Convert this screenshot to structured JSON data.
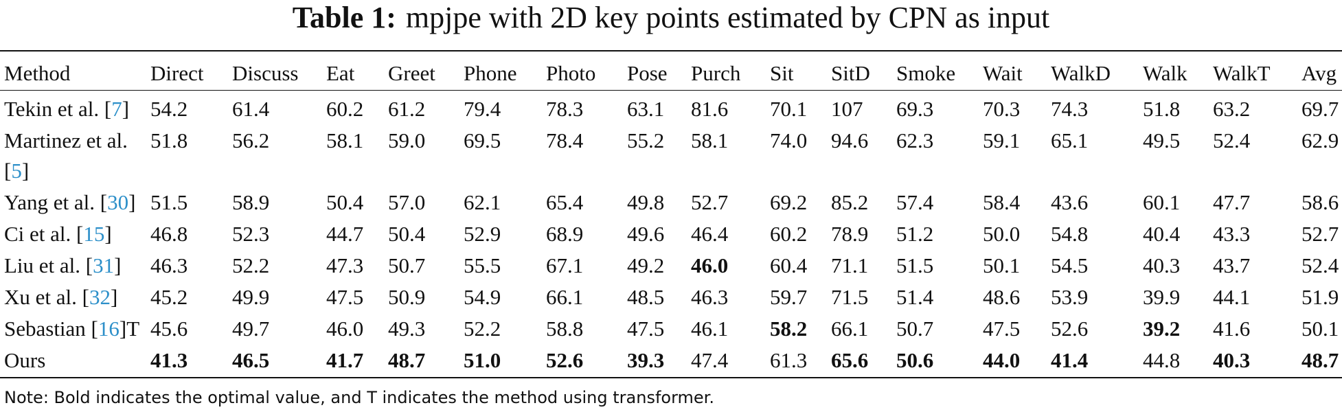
{
  "title": {
    "label": "Table 1:",
    "text": "mpjpe with 2D key points estimated by CPN as input"
  },
  "table": {
    "header": [
      "Method",
      "Direct",
      "Discuss",
      "Eat",
      "Greet",
      "Phone",
      "Photo",
      "Pose",
      "Purch",
      "Sit",
      "SitD",
      "Smoke",
      "Wait",
      "WalkD",
      "Walk",
      "WalkT",
      "Avg"
    ],
    "rows": [
      {
        "method": "Tekin et al. [7]",
        "values": [
          "54.2",
          "61.4",
          "60.2",
          "61.2",
          "79.4",
          "78.3",
          "63.1",
          "81.6",
          "70.1",
          "107",
          "69.3",
          "70.3",
          "74.3",
          "51.8",
          "63.2",
          "69.7"
        ]
      },
      {
        "method": "Martinez et al. [5]",
        "values": [
          "51.8",
          "56.2",
          "58.1",
          "59.0",
          "69.5",
          "78.4",
          "55.2",
          "58.1",
          "74.0",
          "94.6",
          "62.3",
          "59.1",
          "65.1",
          "49.5",
          "52.4",
          "62.9"
        ]
      },
      {
        "method": "Yang et al. [30]",
        "values": [
          "51.5",
          "58.9",
          "50.4",
          "57.0",
          "62.1",
          "65.4",
          "49.8",
          "52.7",
          "69.2",
          "85.2",
          "57.4",
          "58.4",
          "43.6",
          "60.1",
          "47.7",
          "58.6"
        ]
      },
      {
        "method": "Ci et al. [15]",
        "values": [
          "46.8",
          "52.3",
          "44.7",
          "50.4",
          "52.9",
          "68.9",
          "49.6",
          "46.4",
          "60.2",
          "78.9",
          "51.2",
          "50.0",
          "54.8",
          "40.4",
          "43.3",
          "52.7"
        ]
      },
      {
        "method": "Liu et al. [31]",
        "values": [
          "46.3",
          "52.2",
          "47.3",
          "50.7",
          "55.5",
          "67.1",
          "49.2",
          "46.0",
          "60.4",
          "71.1",
          "51.5",
          "50.1",
          "54.5",
          "40.3",
          "43.7",
          "52.4"
        ]
      },
      {
        "method": "Xu et al. [32]",
        "values": [
          "45.2",
          "49.9",
          "47.5",
          "50.9",
          "54.9",
          "66.1",
          "48.5",
          "46.3",
          "59.7",
          "71.5",
          "51.4",
          "48.6",
          "53.9",
          "39.9",
          "44.1",
          "51.9"
        ]
      },
      {
        "method": "Sebastian [16]T",
        "values": [
          "45.6",
          "49.7",
          "46.0",
          "49.3",
          "52.2",
          "58.8",
          "47.5",
          "46.1",
          "58.2",
          "66.1",
          "50.7",
          "47.5",
          "52.6",
          "39.2",
          "41.6",
          "50.1"
        ]
      },
      {
        "method": "Ours",
        "values": [
          "41.3",
          "46.5",
          "41.7",
          "48.7",
          "51.0",
          "52.6",
          "39.3",
          "47.4",
          "61.3",
          "65.6",
          "50.6",
          "44.0",
          "41.4",
          "44.8",
          "40.3",
          "48.7"
        ]
      }
    ],
    "bold": [
      [
        4,
        7
      ],
      [
        6,
        8
      ],
      [
        6,
        13
      ],
      [
        7,
        0
      ],
      [
        7,
        1
      ],
      [
        7,
        2
      ],
      [
        7,
        3
      ],
      [
        7,
        4
      ],
      [
        7,
        5
      ],
      [
        7,
        6
      ],
      [
        7,
        9
      ],
      [
        7,
        10
      ],
      [
        7,
        11
      ],
      [
        7,
        12
      ],
      [
        7,
        14
      ],
      [
        7,
        15
      ]
    ]
  },
  "note": "Note: Bold indicates the optimal value, and T indicates the method using transformer."
}
